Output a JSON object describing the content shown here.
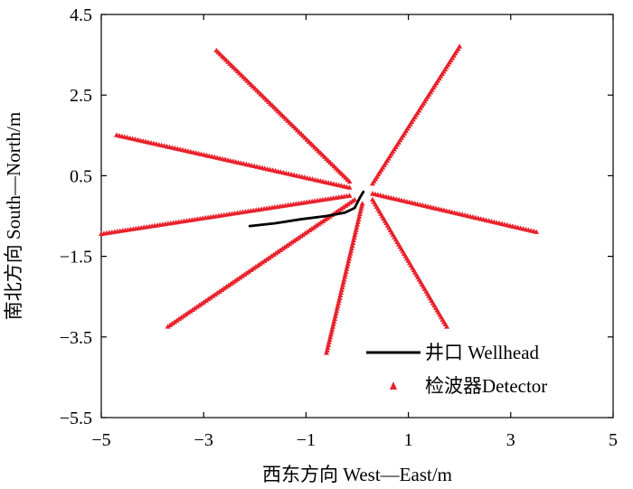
{
  "chart_data": {
    "type": "scatter",
    "title": "",
    "xlabel": "西东方向 West—East/m",
    "ylabel": "南北方向 South—North/m",
    "xlim": [
      -5,
      5
    ],
    "ylim": [
      -5.5,
      4.5
    ],
    "xticks": [
      -5,
      -3,
      -1,
      1,
      3,
      5
    ],
    "yticks": [
      4.5,
      2.5,
      0.5,
      -1.5,
      -3.5,
      -5.5
    ],
    "grid": false,
    "legend_position": "bottom-right",
    "colors": {
      "wellhead": "#000000",
      "detector": "#e8212b"
    },
    "series": [
      {
        "name": "井口 Wellhead",
        "kind": "line",
        "points": [
          [
            -2.1,
            -0.75
          ],
          [
            -1.6,
            -0.68
          ],
          [
            -1.1,
            -0.58
          ],
          [
            -0.6,
            -0.5
          ],
          [
            -0.25,
            -0.42
          ],
          [
            -0.05,
            -0.3
          ],
          [
            0.05,
            -0.05
          ],
          [
            0.12,
            0.1
          ]
        ]
      },
      {
        "name": "检波器Detector",
        "kind": "lines",
        "arms": [
          {
            "start": [
              -2.75,
              3.6
            ],
            "end": [
              -0.15,
              0.35
            ]
          },
          {
            "start": [
              2.0,
              3.7
            ],
            "end": [
              0.3,
              0.3
            ]
          },
          {
            "start": [
              -4.7,
              1.5
            ],
            "end": [
              -0.15,
              0.2
            ]
          },
          {
            "start": [
              0.3,
              0.05
            ],
            "end": [
              3.5,
              -0.9
            ]
          },
          {
            "start": [
              -0.15,
              0.0
            ],
            "end": [
              -5.0,
              -0.95
            ]
          },
          {
            "start": [
              -0.05,
              -0.1
            ],
            "end": [
              -3.7,
              -3.25
            ]
          },
          {
            "start": [
              0.3,
              -0.1
            ],
            "end": [
              1.75,
              -3.25
            ]
          },
          {
            "start": [
              0.1,
              -0.2
            ],
            "end": [
              -0.6,
              -3.9
            ]
          }
        ]
      }
    ]
  }
}
